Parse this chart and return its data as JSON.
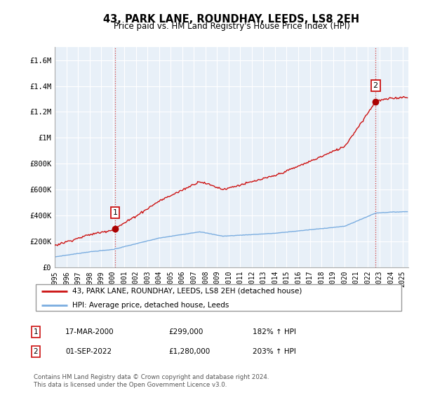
{
  "title": "43, PARK LANE, ROUNDHAY, LEEDS, LS8 2EH",
  "subtitle": "Price paid vs. HM Land Registry's House Price Index (HPI)",
  "legend_line1": "43, PARK LANE, ROUNDHAY, LEEDS, LS8 2EH (detached house)",
  "legend_line2": "HPI: Average price, detached house, Leeds",
  "table_rows": [
    {
      "num": "1",
      "date": "17-MAR-2000",
      "price": "£299,000",
      "hpi": "182% ↑ HPI"
    },
    {
      "num": "2",
      "date": "01-SEP-2022",
      "price": "£1,280,000",
      "hpi": "203% ↑ HPI"
    }
  ],
  "footnote": "Contains HM Land Registry data © Crown copyright and database right 2024.\nThis data is licensed under the Open Government Licence v3.0.",
  "hpi_color": "#7aade0",
  "price_color": "#cc1111",
  "marker_color": "#aa0000",
  "bg_color": "#e8f0f8",
  "ylim": [
    0,
    1700000
  ],
  "yticks": [
    0,
    200000,
    400000,
    600000,
    800000,
    1000000,
    1200000,
    1400000,
    1600000
  ],
  "ytick_labels": [
    "£0",
    "£200K",
    "£400K",
    "£600K",
    "£800K",
    "£1M",
    "£1.2M",
    "£1.4M",
    "£1.6M"
  ],
  "sale1_year": 2000.208,
  "sale1_price": 299000,
  "sale2_year": 2022.667,
  "sale2_price": 1280000
}
